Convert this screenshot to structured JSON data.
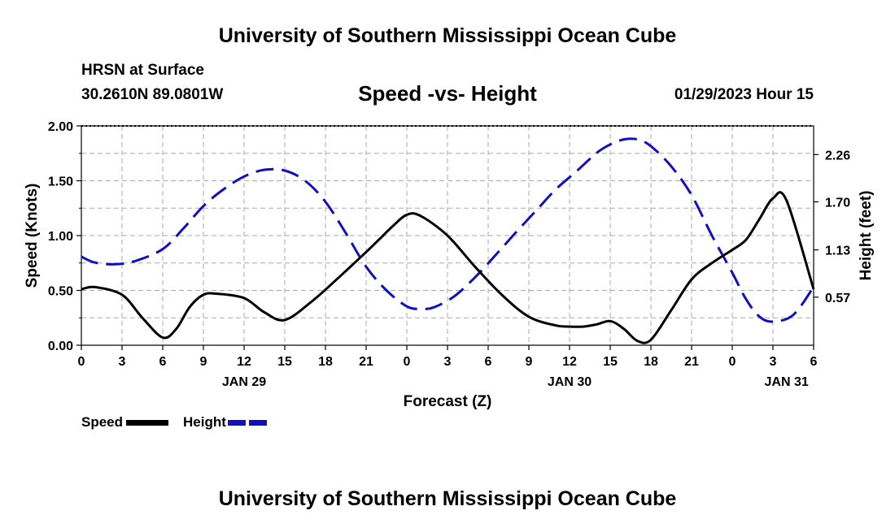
{
  "header": {
    "title": "University of Southern Mississippi Ocean Cube",
    "station": "HRSN at Surface",
    "coords": "30.2610N  89.0801W",
    "chart_title": "Speed -vs- Height",
    "datetime": "01/29/2023 Hour 15",
    "footer_title": "University of Southern Mississippi Ocean Cube"
  },
  "legend": {
    "speed_label": "Speed",
    "height_label": "Height"
  },
  "colors": {
    "speed": "#000000",
    "height": "#1010c0",
    "grid": "#aaaaaa"
  },
  "chart_data": {
    "type": "line",
    "title": "Speed -vs- Height",
    "xlabel": "Forecast (Z)",
    "ylabel": "Speed (Knots)",
    "y2label": "Height (feet)",
    "xlim": [
      0,
      54
    ],
    "ylim": [
      0,
      2.0
    ],
    "y2lim": [
      0,
      2.6
    ],
    "x_tick_values": [
      0,
      3,
      6,
      9,
      12,
      15,
      18,
      21,
      24,
      27,
      30,
      33,
      36,
      39,
      42,
      45,
      48,
      51,
      54
    ],
    "x_tick_labels": [
      "0",
      "3",
      "6",
      "9",
      "12",
      "15",
      "18",
      "21",
      "0",
      "3",
      "6",
      "9",
      "12",
      "15",
      "18",
      "21",
      "0",
      "3",
      "6"
    ],
    "date_labels": [
      {
        "x": 12,
        "label": "JAN 29"
      },
      {
        "x": 36,
        "label": "JAN 30"
      },
      {
        "x": 52,
        "label": "JAN 31"
      }
    ],
    "y_ticks": [
      "0.00",
      "0.50",
      "1.00",
      "1.50",
      "2.00"
    ],
    "y_tick_values": [
      0,
      0.5,
      1.0,
      1.5,
      2.0
    ],
    "y2_ticks": [
      "0.57",
      "1.13",
      "1.70",
      "2.26"
    ],
    "y2_tick_values": [
      0.57,
      1.13,
      1.7,
      2.26
    ],
    "grid": true,
    "series": [
      {
        "name": "Speed",
        "axis": "left",
        "style": "solid",
        "x": [
          0,
          1,
          3,
          4.5,
          6,
          7,
          8,
          9,
          10,
          12,
          13.5,
          15,
          17,
          19,
          21,
          22,
          23,
          24,
          25,
          27,
          29,
          31,
          33,
          35,
          36,
          37,
          38,
          39,
          40,
          41,
          42,
          43.5,
          45,
          46.5,
          48,
          49,
          50,
          51,
          52,
          54
        ],
        "values": [
          0.51,
          0.53,
          0.46,
          0.25,
          0.07,
          0.15,
          0.35,
          0.46,
          0.47,
          0.43,
          0.3,
          0.23,
          0.4,
          0.62,
          0.85,
          0.97,
          1.09,
          1.19,
          1.18,
          1.0,
          0.72,
          0.46,
          0.26,
          0.18,
          0.17,
          0.17,
          0.19,
          0.22,
          0.15,
          0.04,
          0.05,
          0.32,
          0.6,
          0.75,
          0.87,
          0.96,
          1.15,
          1.34,
          1.32,
          0.51
        ]
      },
      {
        "name": "Height",
        "axis": "right",
        "style": "dashed",
        "x": [
          0,
          1,
          2.5,
          4,
          6,
          7.5,
          9,
          10.5,
          12,
          13.5,
          15,
          16.5,
          18,
          19.5,
          21,
          22.5,
          24,
          25,
          26,
          27.5,
          29,
          30.5,
          32,
          33.5,
          35,
          36.5,
          38,
          39,
          40,
          41,
          42,
          43.5,
          45,
          46.5,
          48,
          49,
          50,
          51,
          52.5,
          54
        ],
        "values": [
          1.05,
          0.98,
          0.96,
          1.0,
          1.14,
          1.38,
          1.65,
          1.85,
          2.0,
          2.08,
          2.07,
          1.95,
          1.7,
          1.33,
          0.93,
          0.65,
          0.46,
          0.43,
          0.45,
          0.58,
          0.8,
          1.06,
          1.33,
          1.59,
          1.85,
          2.06,
          2.28,
          2.38,
          2.44,
          2.44,
          2.36,
          2.12,
          1.78,
          1.3,
          0.86,
          0.55,
          0.34,
          0.28,
          0.36,
          0.69
        ]
      }
    ]
  }
}
